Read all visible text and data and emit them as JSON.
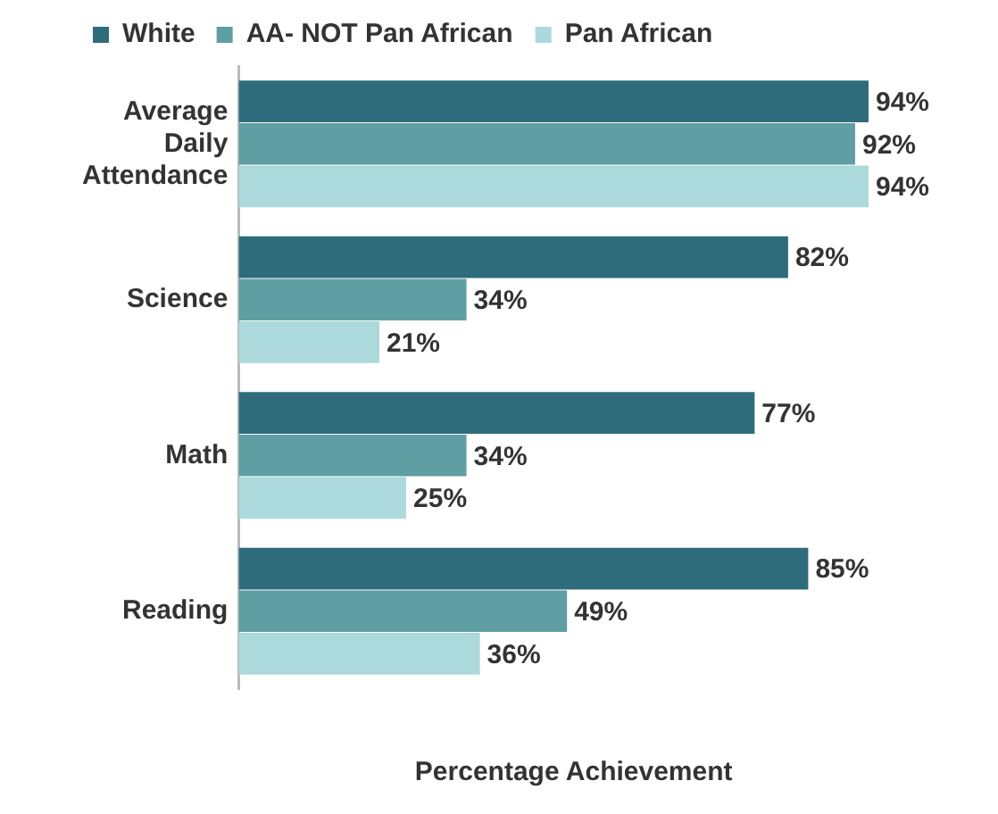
{
  "chart_data": {
    "type": "bar",
    "orientation": "horizontal",
    "xlabel": "Percentage Achievement",
    "legend": "top left",
    "categories": [
      "Average Daily Attendance",
      "Science",
      "Math",
      "Reading"
    ],
    "series": [
      {
        "name": "White",
        "color": "#2e6c7b",
        "values": [
          94,
          82,
          77,
          85
        ],
        "value_labels": [
          "94%",
          "82%",
          "77%",
          "85%"
        ]
      },
      {
        "name": "AA- NOT Pan African",
        "color": "#5f9ea2",
        "values": [
          92,
          34,
          34,
          49
        ],
        "value_labels": [
          "92%",
          "34%",
          "34%",
          "49%"
        ]
      },
      {
        "name": "Pan African",
        "color": "#acd9db",
        "values": [
          94,
          21,
          25,
          36
        ],
        "value_labels": [
          "94%",
          "21%",
          "25%",
          "36%"
        ]
      }
    ]
  }
}
